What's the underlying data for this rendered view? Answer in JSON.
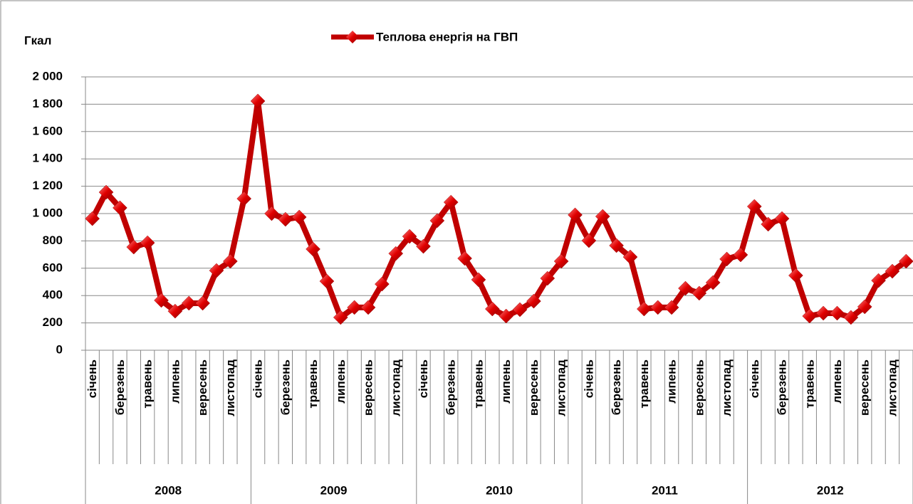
{
  "chart_data": {
    "type": "line",
    "y_axis_label": "Гкал",
    "categories": [
      "січень",
      null,
      "березень",
      null,
      "травень",
      null,
      "липень",
      null,
      "вересень",
      null,
      "листопад",
      null,
      "січень",
      null,
      "березень",
      null,
      "травень",
      null,
      "липень",
      null,
      "вересень",
      null,
      "листопад",
      null,
      "січень",
      null,
      "березень",
      null,
      "травень",
      null,
      "липень",
      null,
      "вересень",
      null,
      "листопад",
      null,
      "січень",
      null,
      "березень",
      null,
      "травень",
      null,
      "липень",
      null,
      "вересень",
      null,
      "листопад",
      null,
      "січень",
      null,
      "березень",
      null,
      "травень",
      null,
      "липень",
      null,
      "вересень",
      null,
      "листопад",
      null
    ],
    "years": [
      "2008",
      "2009",
      "2010",
      "2011",
      "2012"
    ],
    "series": [
      {
        "name": "Теплова енергія на ГВП",
        "color": "#c00000",
        "values": [
          963,
          1156,
          1042,
          755,
          786,
          365,
          286,
          344,
          344,
          583,
          651,
          1109,
          1823,
          1000,
          958,
          974,
          740,
          505,
          240,
          313,
          313,
          484,
          708,
          833,
          760,
          948,
          1083,
          672,
          516,
          302,
          250,
          297,
          359,
          526,
          651,
          990,
          802,
          979,
          766,
          682,
          302,
          313,
          313,
          453,
          417,
          495,
          667,
          698,
          1052,
          922,
          963,
          547,
          250,
          271,
          271,
          240,
          318,
          510,
          578,
          651
        ]
      }
    ],
    "ylim": [
      0,
      2000
    ],
    "yticks": [
      0,
      {
        "value": 200,
        "label": "200"
      },
      {
        "value": 400,
        "label": "400"
      },
      {
        "value": 600,
        "label": "600"
      },
      {
        "value": 800,
        "label": "800"
      },
      {
        "value": 1000,
        "label": "1 000"
      },
      {
        "value": 1200,
        "label": "1 200"
      },
      {
        "value": 1400,
        "label": "1 400"
      },
      {
        "value": 1600,
        "label": "1 600"
      },
      {
        "value": 1800,
        "label": "1 800"
      },
      {
        "value": 2000,
        "label": "2 000"
      }
    ],
    "grid": true
  }
}
